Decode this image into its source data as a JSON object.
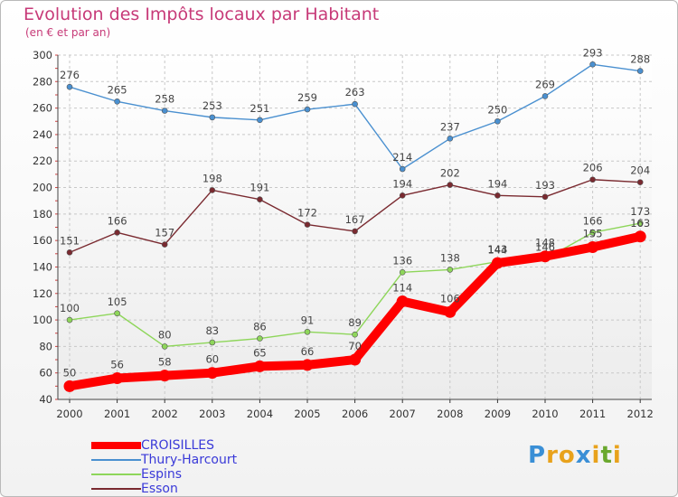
{
  "title": "Evolution des Impôts locaux par Habitant",
  "subtitle": "(en € et par an)",
  "logo": {
    "letters": [
      "P",
      "r",
      "o",
      "x",
      "i",
      "t",
      "i"
    ],
    "colors": [
      "#3a8fd6",
      "#e8a21c",
      "#e8a21c",
      "#3a8fd6",
      "#e8a21c",
      "#6aa82e",
      "#e8a21c"
    ]
  },
  "chart_data": {
    "type": "line",
    "x": [
      "2000",
      "2001",
      "2002",
      "2003",
      "2004",
      "2005",
      "2006",
      "2007",
      "2008",
      "2009",
      "2010",
      "2011",
      "2012"
    ],
    "ylim": [
      40,
      300
    ],
    "yticks": [
      40,
      60,
      80,
      100,
      120,
      140,
      160,
      180,
      200,
      220,
      240,
      260,
      280,
      300
    ],
    "grid": true,
    "legend_position": "bottom-left",
    "series": [
      {
        "name": "CROISILLES",
        "color": "#ff0000",
        "values": [
          50,
          56,
          58,
          60,
          65,
          66,
          70,
          114,
          106,
          143,
          148,
          155,
          163
        ]
      },
      {
        "name": "Thury-Harcourt",
        "color": "#4a90d0",
        "values": [
          276,
          265,
          258,
          253,
          251,
          259,
          263,
          214,
          237,
          250,
          269,
          293,
          288
        ]
      },
      {
        "name": "Espins",
        "color": "#8ed65a",
        "values": [
          100,
          105,
          80,
          83,
          86,
          91,
          89,
          136,
          138,
          144,
          146,
          166,
          173
        ]
      },
      {
        "name": "Esson",
        "color": "#7a2a30",
        "values": [
          151,
          166,
          157,
          198,
          191,
          172,
          167,
          194,
          202,
          194,
          193,
          206,
          204
        ]
      }
    ]
  }
}
